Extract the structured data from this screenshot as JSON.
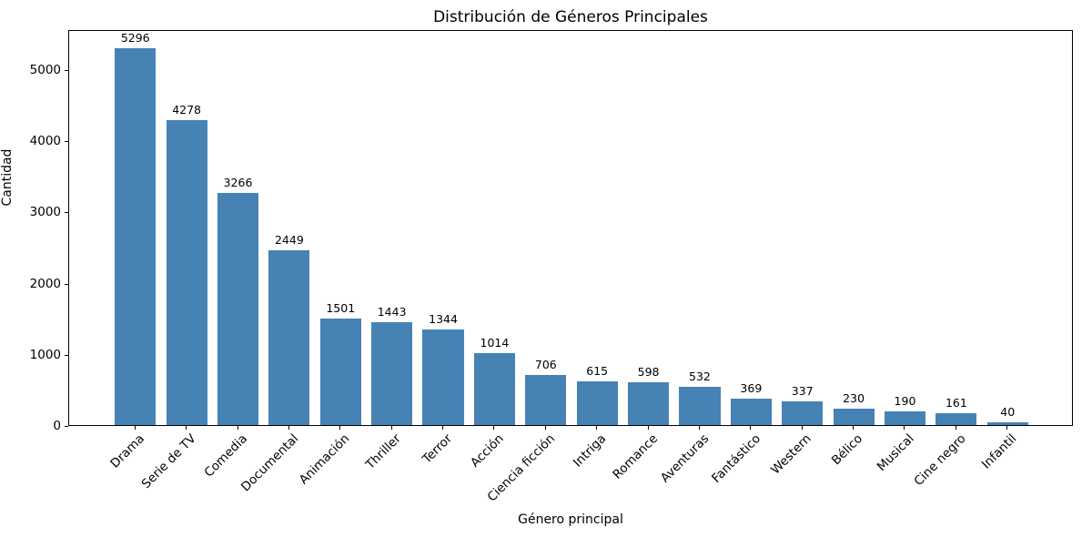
{
  "chart_data": {
    "type": "bar",
    "title": "Distribución de Géneros Principales",
    "xlabel": "Género principal",
    "ylabel": "Cantidad",
    "categories": [
      "Drama",
      "Serie de TV",
      "Comedia",
      "Documental",
      "Animación",
      "Thriller",
      "Terror",
      "Acción",
      "Ciencia ficción",
      "Intriga",
      "Romance",
      "Aventuras",
      "Fantástico",
      "Western",
      "Bélico",
      "Musical",
      "Cine negro",
      "Infantil"
    ],
    "values": [
      5296,
      4278,
      3266,
      2449,
      1501,
      1443,
      1344,
      1014,
      706,
      615,
      598,
      532,
      369,
      337,
      230,
      190,
      161,
      40
    ],
    "bar_color": "#4682b4",
    "grid": false,
    "legend": null,
    "ylim": [
      0,
      5561
    ],
    "yticks": [
      0,
      1000,
      2000,
      3000,
      4000,
      5000
    ],
    "xlim": [
      -1.29,
      18.29
    ],
    "bar_width_units": 0.8,
    "x_tick_rotation_deg": 45
  }
}
